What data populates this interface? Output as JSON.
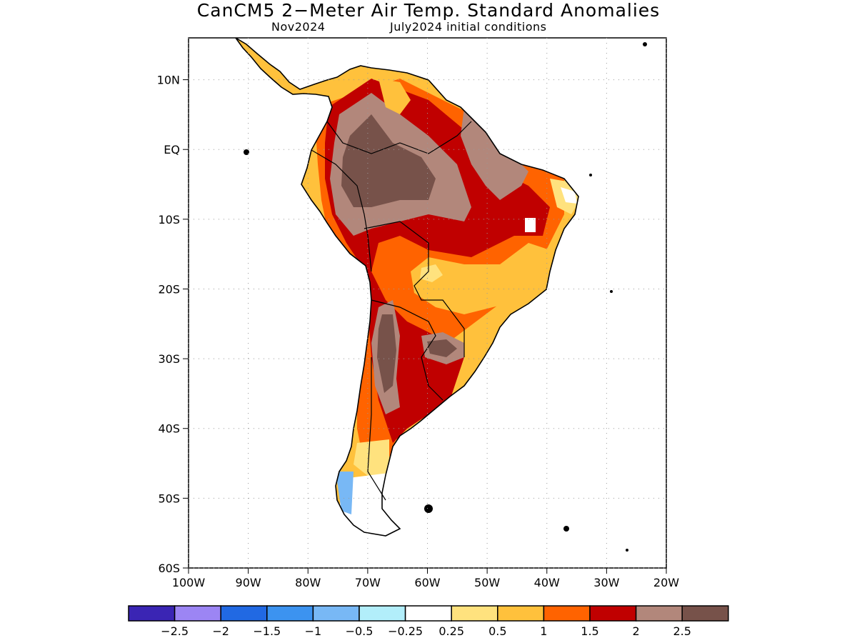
{
  "title": "CanCM5 2−Meter Air Temp. Standard Anomalies",
  "subtitle": {
    "left": "Nov2024",
    "right": "July2024 initial conditions"
  },
  "map": {
    "lat_labels": [
      "10N",
      "EQ",
      "10S",
      "20S",
      "30S",
      "40S",
      "50S",
      "60S"
    ],
    "lon_labels": [
      "100W",
      "90W",
      "80W",
      "70W",
      "60W",
      "50W",
      "40W",
      "30W",
      "20W"
    ],
    "lat_values": [
      10,
      0,
      -10,
      -20,
      -30,
      -40,
      -50,
      -60
    ],
    "lon_values": [
      -100,
      -90,
      -80,
      -70,
      -60,
      -50,
      -40,
      -30,
      -20
    ],
    "lat_range": [
      -60,
      16
    ],
    "lon_range": [
      -100,
      -20
    ],
    "grid": "dotted"
  },
  "legend": {
    "colors": [
      "#3a25b4",
      "#9c85f4",
      "#2169e3",
      "#3c93f0",
      "#78b8f5",
      "#b2eefa",
      "#ffffff",
      "#ffe27e",
      "#ffc13c",
      "#ff6300",
      "#c00000",
      "#b2877b",
      "#77524a"
    ],
    "labels": [
      "−2.5",
      "−2",
      "−1.5",
      "−1",
      "−0.5",
      "−0.25",
      "0.25",
      "0.5",
      "1",
      "1.5",
      "2",
      "2.5"
    ]
  }
}
